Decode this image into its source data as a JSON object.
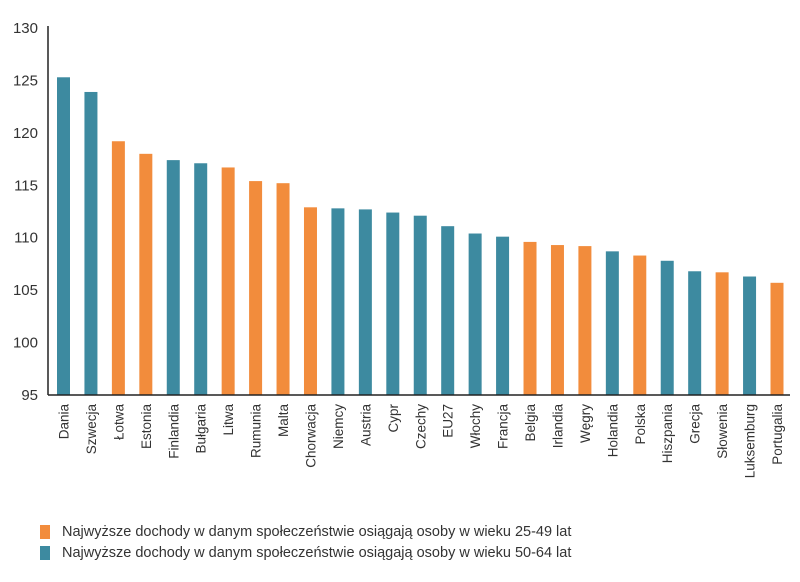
{
  "chart_data": {
    "type": "bar",
    "title": "",
    "xlabel": "",
    "ylabel": "",
    "ylim": [
      95,
      130
    ],
    "yticks": [
      95,
      100,
      105,
      110,
      115,
      120,
      125,
      130
    ],
    "grid": false,
    "legend_position": "bottom-left",
    "categories": [
      "Dania",
      "Szwecja",
      "Łotwa",
      "Estonia",
      "Finlandia",
      "Bułgaria",
      "Litwa",
      "Rumunia",
      "Malta",
      "Chorwacja",
      "Niemcy",
      "Austria",
      "Cypr",
      "Czechy",
      "EU27",
      "Włochy",
      "Francja",
      "Belgia",
      "Irlandia",
      "Węgry",
      "Holandia",
      "Polska",
      "Hiszpania",
      "Grecja",
      "Słowenia",
      "Luksemburg",
      "Portugalia"
    ],
    "values": [
      125.3,
      123.9,
      119.2,
      118.0,
      117.4,
      117.1,
      116.7,
      115.4,
      115.2,
      112.9,
      112.8,
      112.7,
      112.4,
      112.1,
      111.1,
      110.4,
      110.1,
      109.6,
      109.3,
      109.2,
      108.7,
      108.3,
      107.8,
      106.8,
      106.7,
      106.3,
      105.7
    ],
    "groups": [
      "50-64",
      "50-64",
      "25-49",
      "25-49",
      "50-64",
      "50-64",
      "25-49",
      "25-49",
      "25-49",
      "25-49",
      "50-64",
      "50-64",
      "50-64",
      "50-64",
      "50-64",
      "50-64",
      "50-64",
      "25-49",
      "25-49",
      "25-49",
      "50-64",
      "25-49",
      "50-64",
      "50-64",
      "25-49",
      "50-64",
      "25-49"
    ],
    "series": [
      {
        "key": "25-49",
        "name": "Najwyższe dochody w danym społeczeństwie osiągają osoby w wieku 25-49 lat",
        "color": "#f28c3c"
      },
      {
        "key": "50-64",
        "name": "Najwyższe dochody w danym społeczeństwie osiągają osoby w wieku 50-64 lat",
        "color": "#3d8aa0"
      }
    ],
    "axis_color": "#222222"
  }
}
